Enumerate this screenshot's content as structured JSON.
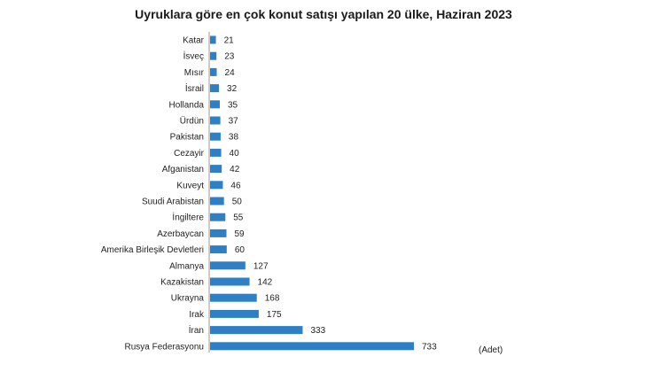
{
  "chart_data": {
    "type": "bar",
    "orientation": "horizontal",
    "title": "Uyruklara göre en çok konut satışı yapılan 20 ülke, Haziran 2023",
    "unit_label": "(Adet)",
    "categories": [
      "Katar",
      "İsveç",
      "Mısır",
      "İsrail",
      "Hollanda",
      "Ürdün",
      "Pakistan",
      "Cezayir",
      "Afganistan",
      "Kuveyt",
      "Suudi Arabistan",
      "İngiltere",
      "Azerbaycan",
      "Amerika Birleşik Devletleri",
      "Almanya",
      "Kazakistan",
      "Ukrayna",
      "Irak",
      "İran",
      "Rusya Federasyonu"
    ],
    "values": [
      21,
      23,
      24,
      32,
      35,
      37,
      38,
      40,
      42,
      46,
      50,
      55,
      59,
      60,
      127,
      142,
      168,
      175,
      333,
      733
    ],
    "bar_color": "#2f7fc7",
    "grid": false,
    "legend": "none"
  }
}
